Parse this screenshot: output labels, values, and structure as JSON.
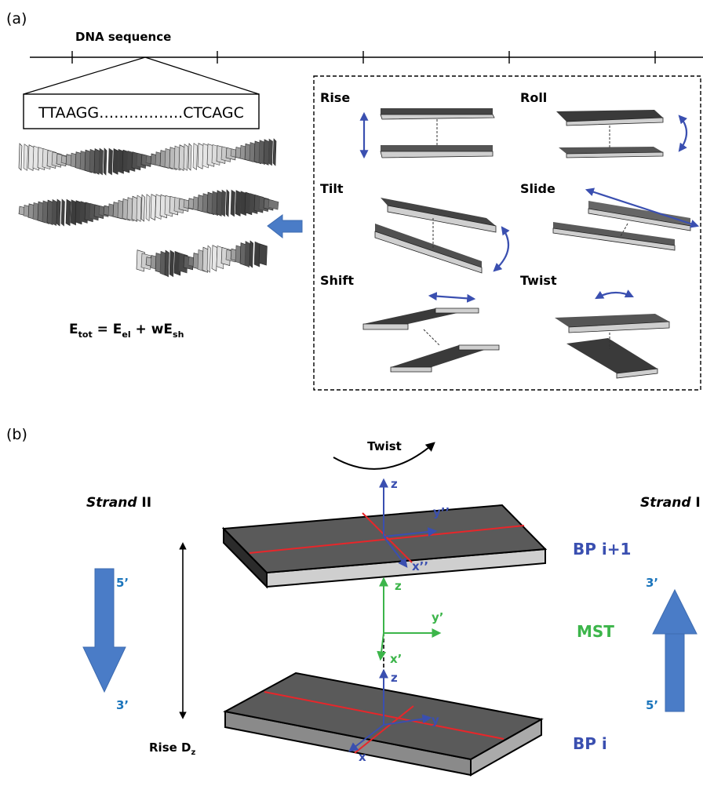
{
  "panel_a": {
    "label": "(a)",
    "title": "DNA sequence",
    "sequence": "TTAAGG……………..CTCAGC",
    "energy": {
      "E": "E",
      "tot": "tot",
      "eq": " = E",
      "el": "el",
      "plus": " + wE",
      "sh": "sh"
    },
    "params": {
      "rise": "Rise",
      "roll": "Roll",
      "tilt": "Tilt",
      "slide": "Slide",
      "shift": "Shift",
      "twist": "Twist"
    }
  },
  "panel_b": {
    "label": "(b)",
    "twist": "Twist",
    "strand_left": "Strand",
    "strand_left_num": " II",
    "strand_right": "Strand",
    "strand_right_num": " I",
    "left_top": "5’",
    "left_bottom": "3’",
    "right_top": "3’",
    "right_bottom": "5’",
    "bp_top": "BP i+1",
    "mst": "MST",
    "bp_bottom": "BP i",
    "rise": "Rise D",
    "rise_sub": "z",
    "axes_top": {
      "z": "z",
      "y": "y’’",
      "x": "x’’"
    },
    "axes_mid": {
      "z": "z",
      "y": "y’",
      "x": "x’"
    },
    "axes_bot": {
      "z": "z",
      "y": "y",
      "x": "x"
    }
  },
  "colors": {
    "blue_arrow": "#4a7cc7",
    "axis_blue": "#3a4fb0",
    "axis_green": "#3cb54a",
    "red_line": "#e8262a",
    "label_blue": "#3a4fb0",
    "label_cyan": "#1b75bc",
    "mst_green": "#3cb54a",
    "plate_dark": "#5a5a5a",
    "plate_light": "#cfcfcf"
  }
}
